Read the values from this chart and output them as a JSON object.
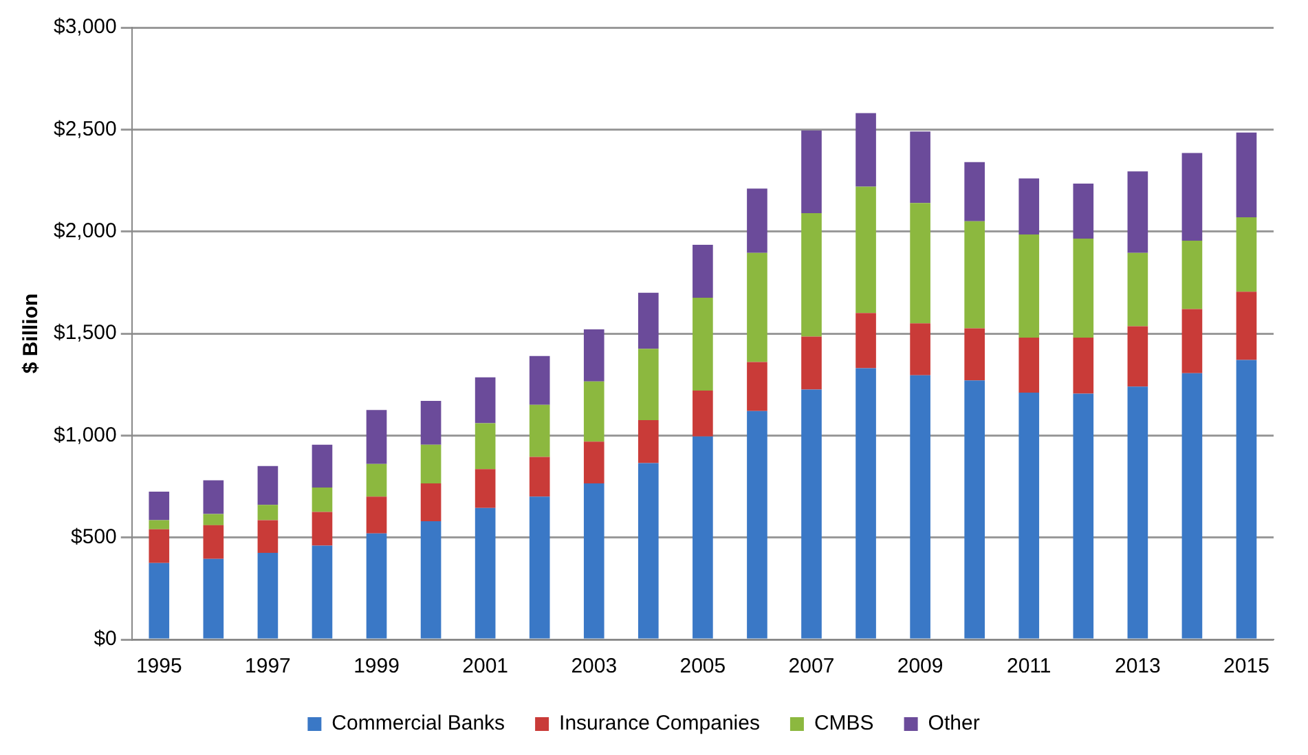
{
  "chart_data": {
    "type": "bar",
    "stacked": true,
    "ylabel": "$ Billion",
    "categories": [
      "1995",
      null,
      "1997",
      null,
      "1999",
      null,
      "2001",
      null,
      "2003",
      null,
      "2005",
      null,
      "2007",
      null,
      "2009",
      null,
      "2011",
      null,
      "2013",
      null,
      "2015"
    ],
    "series": [
      {
        "name": "Commercial Banks",
        "color": "#3a78c6",
        "values": [
          375,
          395,
          425,
          460,
          520,
          580,
          645,
          700,
          765,
          865,
          995,
          1120,
          1225,
          1330,
          1295,
          1270,
          1210,
          1205,
          1240,
          1305,
          1370
        ]
      },
      {
        "name": "Insurance Companies",
        "color": "#c93b38",
        "values": [
          165,
          165,
          160,
          165,
          180,
          185,
          190,
          195,
          205,
          210,
          225,
          240,
          260,
          270,
          255,
          255,
          270,
          275,
          295,
          315,
          335
        ]
      },
      {
        "name": "CMBS",
        "color": "#8cb83f",
        "values": [
          45,
          55,
          75,
          120,
          160,
          190,
          225,
          255,
          295,
          350,
          455,
          535,
          605,
          620,
          590,
          525,
          505,
          485,
          360,
          335,
          365
        ]
      },
      {
        "name": "Other",
        "color": "#6b4b9a",
        "values": [
          140,
          165,
          190,
          210,
          265,
          215,
          225,
          240,
          255,
          275,
          260,
          315,
          405,
          360,
          350,
          290,
          275,
          270,
          400,
          430,
          415
        ]
      }
    ],
    "ylim": [
      0,
      3000
    ],
    "yticks": [
      {
        "value": 0,
        "label": "$0"
      },
      {
        "value": 500,
        "label": "$500"
      },
      {
        "value": 1000,
        "label": "$1,000"
      },
      {
        "value": 1500,
        "label": "$1,500"
      },
      {
        "value": 2000,
        "label": "$2,000"
      },
      {
        "value": 2500,
        "label": "$2,500"
      },
      {
        "value": 3000,
        "label": "$3,000"
      }
    ],
    "grid": "y",
    "legend": "bottom"
  }
}
